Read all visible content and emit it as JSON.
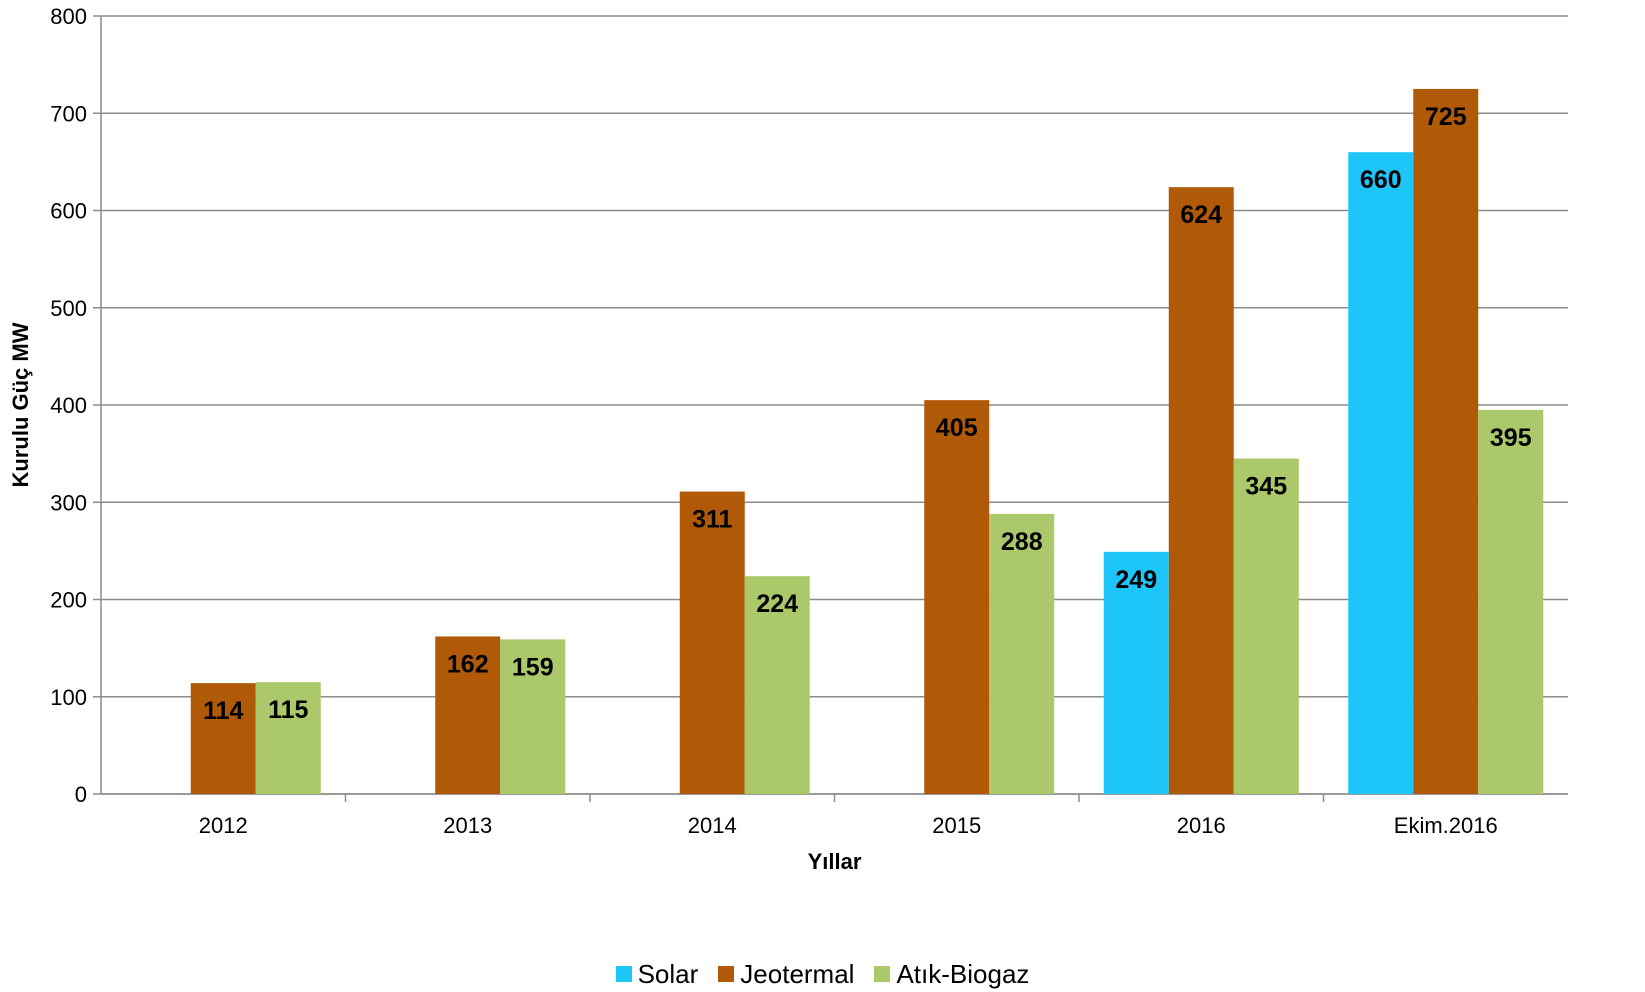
{
  "chart_data": {
    "type": "bar",
    "title": "",
    "xlabel": "Yıllar",
    "ylabel": "Kurulu Güç MW",
    "categories": [
      "2012",
      "2013",
      "2014",
      "2015",
      "2016",
      "Ekim.2016"
    ],
    "ylim": [
      0,
      800
    ],
    "yticks": [
      0,
      100,
      200,
      300,
      400,
      500,
      600,
      700,
      800
    ],
    "grid": true,
    "legend_position": "bottom",
    "series": [
      {
        "name": "Solar",
        "color": "#1EC5F9",
        "values": [
          null,
          null,
          null,
          null,
          249,
          660
        ]
      },
      {
        "name": "Jeotermal",
        "color": "#B05A07",
        "values": [
          114,
          162,
          311,
          405,
          624,
          725
        ]
      },
      {
        "name": "Atık-Biogaz",
        "color": "#ABC86A",
        "values": [
          115,
          159,
          224,
          288,
          345,
          395
        ]
      }
    ]
  }
}
